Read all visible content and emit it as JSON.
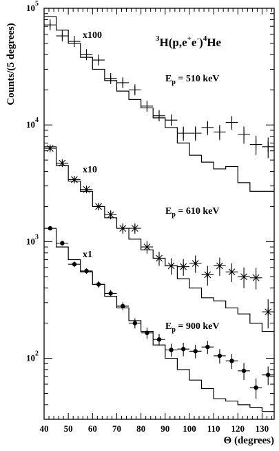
{
  "chart_data": {
    "type": "scatter",
    "title": "",
    "xlabel": "Θ (degrees)",
    "ylabel": "Counts/(5 degrees)",
    "xlim": [
      40,
      135
    ],
    "ylim": [
      30,
      100000
    ],
    "yscale": "log",
    "x_ticks": [
      40,
      50,
      60,
      70,
      80,
      90,
      100,
      110,
      120,
      130
    ],
    "y_ticks": [
      {
        "value": 100,
        "base": "10",
        "exp": "2"
      },
      {
        "value": 1000,
        "base": "10",
        "exp": "3"
      },
      {
        "value": 10000,
        "base": "10",
        "exp": "4"
      },
      {
        "value": 100000,
        "base": "10",
        "exp": "5"
      }
    ],
    "reaction": {
      "prefix": "3",
      "a": "H(p,e",
      "plus": "+",
      "b": "e",
      "minus": "-",
      "c": ")",
      "prefix2": "4",
      "d": "He"
    },
    "annotations": [
      {
        "id": "x100",
        "text": "x100"
      },
      {
        "id": "x10",
        "text": "x10"
      },
      {
        "id": "x1",
        "text": "x1"
      }
    ],
    "energy_labels": [
      {
        "id": "e510",
        "E": "E",
        "sub": "p",
        "value": "= 510 keV"
      },
      {
        "id": "e610",
        "E": "E",
        "sub": "p",
        "value": "= 610 keV"
      },
      {
        "id": "e900",
        "E": "E",
        "sub": "p",
        "value": "= 900 keV"
      }
    ],
    "x_bin_edges": [
      40,
      45,
      50,
      55,
      60,
      65,
      70,
      75,
      80,
      85,
      90,
      95,
      100,
      105,
      110,
      115,
      120,
      125,
      130,
      135
    ],
    "series": [
      {
        "marker": "plus",
        "x": [
          42.5,
          47.5,
          52.5,
          57.5,
          62.5,
          67.5,
          72.5,
          77.5,
          82.5,
          87.5,
          92.5,
          97.5,
          102.5,
          107.5,
          112.5,
          117.5,
          122.5,
          127.5,
          132.5
        ],
        "y": [
          72000,
          58000,
          52000,
          40000,
          36000,
          25000,
          23000,
          20000,
          14500,
          12000,
          11000,
          8500,
          8500,
          9500,
          8700,
          10500,
          8300,
          6800,
          6500
        ],
        "yerr": [
          3000,
          2500,
          2200,
          1800,
          1800,
          1500,
          1500,
          1500,
          1300,
          1200,
          1200,
          1200,
          1200,
          1300,
          1300,
          1400,
          1400,
          1300,
          1300
        ],
        "model": [
          85000,
          65000,
          50000,
          38000,
          30000,
          24000,
          19500,
          16500,
          14000,
          11500,
          9500,
          7000,
          5500,
          4800,
          4200,
          4400,
          3200,
          2700,
          2700
        ]
      },
      {
        "marker": "star",
        "x": [
          42.5,
          47.5,
          52.5,
          57.5,
          62.5,
          67.5,
          72.5,
          77.5,
          82.5,
          87.5,
          92.5,
          97.5,
          102.5,
          107.5,
          112.5,
          117.5,
          122.5,
          127.5,
          132.5
        ],
        "y": [
          6300,
          4700,
          3400,
          2800,
          2000,
          1700,
          1300,
          1300,
          900,
          720,
          620,
          610,
          650,
          520,
          620,
          550,
          500,
          490,
          250
        ],
        "yerr": [
          300,
          250,
          200,
          180,
          150,
          150,
          130,
          130,
          110,
          100,
          100,
          100,
          110,
          100,
          110,
          100,
          100,
          100,
          70
        ],
        "model": [
          6500,
          4500,
          3300,
          2700,
          2000,
          1600,
          1300,
          1050,
          850,
          720,
          620,
          480,
          400,
          330,
          310,
          270,
          240,
          200,
          170
        ]
      },
      {
        "marker": "dot",
        "x": [
          42.5,
          47.5,
          52.5,
          57.5,
          62.5,
          67.5,
          72.5,
          77.5,
          82.5,
          87.5,
          92.5,
          97.5,
          102.5,
          107.5,
          112.5,
          117.5,
          122.5,
          127.5,
          132.5
        ],
        "y": [
          1300,
          970,
          640,
          560,
          430,
          360,
          280,
          200,
          165,
          145,
          118,
          120,
          115,
          125,
          105,
          95,
          78,
          56,
          72
        ],
        "yerr": [
          50,
          45,
          35,
          30,
          28,
          25,
          22,
          20,
          18,
          17,
          15,
          16,
          15,
          16,
          15,
          14,
          13,
          11,
          13
        ],
        "model": [
          1300,
          900,
          700,
          550,
          430,
          340,
          270,
          210,
          170,
          130,
          100,
          80,
          65,
          55,
          45,
          43,
          40,
          38,
          35
        ]
      }
    ]
  }
}
